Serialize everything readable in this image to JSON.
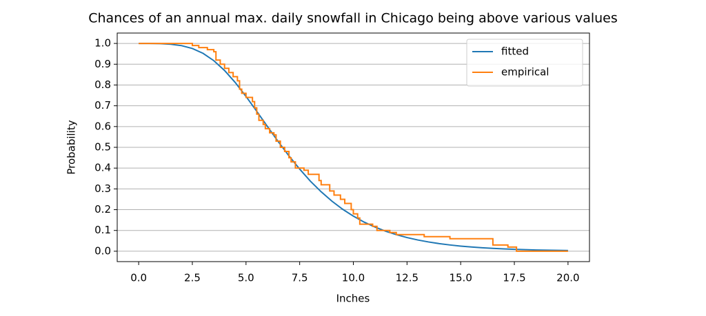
{
  "chart_data": {
    "type": "line",
    "title": "Chances of an annual max. daily snowfall in Chicago being above various values",
    "x_label": "Inches",
    "y_label": "Probability",
    "xlim": [
      -1,
      21
    ],
    "ylim": [
      -0.05,
      1.05
    ],
    "xticks": [
      {
        "value": 0,
        "label": "0.0"
      },
      2.5,
      {
        "value": 5,
        "label": "5.0"
      },
      7.5,
      {
        "value": 10,
        "label": "10.0"
      },
      12.5,
      {
        "value": 15,
        "label": "15.0"
      },
      17.5,
      {
        "value": 20,
        "label": "20.0"
      }
    ],
    "yticks": [
      {
        "value": 0,
        "label": "0.0"
      },
      0.1,
      0.2,
      0.3,
      0.4,
      0.5,
      0.6,
      0.7,
      0.8,
      0.9,
      {
        "value": 1,
        "label": "1.0"
      }
    ],
    "grid": "y",
    "legend": "upper right",
    "series": [
      {
        "name": "fitted",
        "color": "#1f77b4",
        "x": [
          0,
          0.5,
          1,
          1.5,
          2,
          2.5,
          3,
          3.5,
          4,
          4.5,
          5,
          5.5,
          6,
          6.5,
          7,
          7.5,
          8,
          8.5,
          9,
          9.5,
          10,
          10.5,
          11,
          11.5,
          12,
          12.5,
          13,
          13.5,
          14,
          14.5,
          15,
          15.5,
          16,
          16.5,
          17,
          17.5,
          18,
          18.5,
          19,
          19.5,
          20
        ],
        "values": [
          1.0,
          0.9997,
          0.9989,
          0.9961,
          0.9893,
          0.9756,
          0.9522,
          0.9171,
          0.87,
          0.8117,
          0.7449,
          0.6734,
          0.6,
          0.5276,
          0.4589,
          0.3953,
          0.3371,
          0.2861,
          0.2411,
          0.2022,
          0.1689,
          0.1402,
          0.1166,
          0.0965,
          0.0797,
          0.0657,
          0.0542,
          0.0446,
          0.0366,
          0.0301,
          0.0247,
          0.0203,
          0.0167,
          0.0136,
          0.0111,
          0.0092,
          0.0075,
          0.0061,
          0.005,
          0.0041,
          0.0034
        ]
      },
      {
        "name": "empirical",
        "color": "#ff7f0e",
        "x": [
          0,
          2.5,
          2.5,
          2.8,
          2.8,
          3.2,
          3.2,
          3.5,
          3.5,
          3.6,
          3.6,
          3.8,
          3.8,
          4.0,
          4.0,
          4.2,
          4.2,
          4.4,
          4.4,
          4.6,
          4.6,
          4.7,
          4.7,
          4.8,
          4.8,
          5.0,
          5.0,
          5.3,
          5.3,
          5.4,
          5.4,
          5.5,
          5.5,
          5.6,
          5.6,
          5.8,
          5.8,
          5.9,
          5.9,
          6.1,
          6.1,
          6.3,
          6.3,
          6.4,
          6.4,
          6.6,
          6.6,
          6.8,
          6.8,
          7.0,
          7.0,
          7.1,
          7.1,
          7.3,
          7.3,
          7.7,
          7.7,
          7.9,
          7.9,
          8.4,
          8.4,
          8.5,
          8.5,
          8.9,
          8.9,
          9.1,
          9.1,
          9.4,
          9.4,
          9.6,
          9.6,
          9.9,
          9.9,
          10.0,
          10.0,
          10.2,
          10.2,
          10.3,
          10.3,
          10.9,
          10.9,
          11.1,
          11.1,
          11.7,
          11.7,
          12.0,
          12.0,
          13.3,
          13.3,
          14.5,
          14.5,
          16.5,
          16.5,
          17.2,
          17.2,
          17.6,
          17.6,
          20
        ],
        "values": [
          1,
          1,
          0.99,
          0.99,
          0.98,
          0.98,
          0.97,
          0.97,
          0.96,
          0.96,
          0.92,
          0.92,
          0.9,
          0.9,
          0.88,
          0.88,
          0.86,
          0.86,
          0.84,
          0.84,
          0.82,
          0.82,
          0.78,
          0.78,
          0.76,
          0.76,
          0.74,
          0.74,
          0.72,
          0.72,
          0.69,
          0.69,
          0.66,
          0.66,
          0.63,
          0.63,
          0.61,
          0.61,
          0.59,
          0.59,
          0.57,
          0.57,
          0.56,
          0.56,
          0.53,
          0.53,
          0.5,
          0.5,
          0.48,
          0.48,
          0.45,
          0.45,
          0.43,
          0.43,
          0.4,
          0.4,
          0.39,
          0.39,
          0.37,
          0.37,
          0.34,
          0.34,
          0.32,
          0.32,
          0.29,
          0.29,
          0.27,
          0.27,
          0.25,
          0.25,
          0.23,
          0.23,
          0.2,
          0.2,
          0.18,
          0.18,
          0.16,
          0.16,
          0.13,
          0.13,
          0.12,
          0.12,
          0.1,
          0.1,
          0.09,
          0.09,
          0.08,
          0.08,
          0.07,
          0.07,
          0.06,
          0.06,
          0.03,
          0.03,
          0.02,
          0.02,
          0,
          0
        ]
      }
    ]
  }
}
